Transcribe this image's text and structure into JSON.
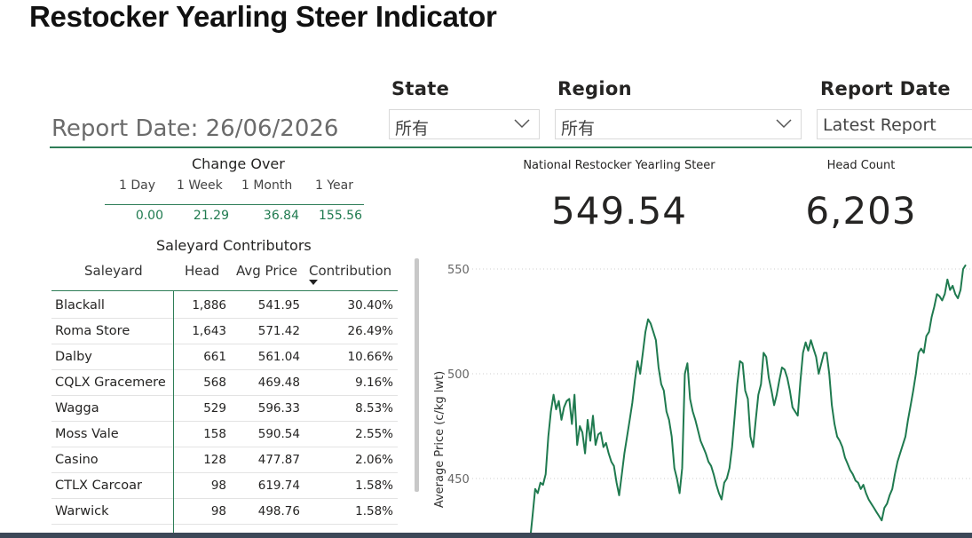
{
  "header": {
    "title": "Restocker Yearling Steer Indicator",
    "report_date_text": "Report Date: 26/06/2026"
  },
  "slicers": {
    "state": {
      "label": "State",
      "value": "所有"
    },
    "region": {
      "label": "Region",
      "value": "所有"
    },
    "report_date": {
      "label": "Report Date",
      "value": "Latest Report"
    }
  },
  "cards": {
    "national": {
      "label": "National Restocker Yearling Steer",
      "value": "549.54"
    },
    "head_count": {
      "label": "Head Count",
      "value": "6,203"
    }
  },
  "change_over": {
    "title": "Change Over",
    "headers": [
      "1 Day",
      "1 Week",
      "1 Month",
      "1 Year"
    ],
    "values": [
      "0.00",
      "21.29",
      "36.84",
      "155.56"
    ]
  },
  "saleyard": {
    "title": "Saleyard Contributors",
    "columns": [
      "Saleyard",
      "Head",
      "Avg Price",
      "Contribution"
    ],
    "rows": [
      {
        "name": "Blackall",
        "head": "1,886",
        "avg": "541.95",
        "contrib": "30.40%"
      },
      {
        "name": "Roma Store",
        "head": "1,643",
        "avg": "571.42",
        "contrib": "26.49%"
      },
      {
        "name": "Dalby",
        "head": "661",
        "avg": "561.04",
        "contrib": "10.66%"
      },
      {
        "name": "CQLX Gracemere",
        "head": "568",
        "avg": "469.48",
        "contrib": "9.16%"
      },
      {
        "name": "Wagga",
        "head": "529",
        "avg": "596.33",
        "contrib": "8.53%"
      },
      {
        "name": "Moss Vale",
        "head": "158",
        "avg": "590.54",
        "contrib": "2.55%"
      },
      {
        "name": "Casino",
        "head": "128",
        "avg": "477.87",
        "contrib": "2.06%"
      },
      {
        "name": "CTLX Carcoar",
        "head": "98",
        "avg": "619.74",
        "contrib": "1.58%"
      },
      {
        "name": "Warwick",
        "head": "98",
        "avg": "498.76",
        "contrib": "1.58%"
      }
    ]
  },
  "colors": {
    "accent": "#2e7d57",
    "line": "#1f7a4f"
  },
  "chart_data": {
    "type": "line",
    "ylabel": "Average Price (c/kg lwt)",
    "y_ticks": [
      550,
      500,
      450
    ],
    "ylim": [
      420,
      552
    ],
    "series": [
      {
        "values": [
          415,
          420,
          432,
          445,
          443,
          448,
          447,
          452,
          470,
          482,
          490,
          483,
          487,
          478,
          484,
          487,
          488,
          476,
          490,
          466,
          475,
          472,
          462,
          478,
          468,
          480,
          466,
          471,
          472,
          465,
          467,
          462,
          458,
          456,
          448,
          442,
          452,
          462,
          470,
          478,
          486,
          497,
          506,
          500,
          510,
          520,
          526,
          524,
          520,
          516,
          503,
          495,
          492,
          482,
          478,
          470,
          455,
          450,
          443,
          455,
          500,
          505,
          488,
          482,
          478,
          473,
          468,
          465,
          462,
          458,
          456,
          452,
          447,
          443,
          440,
          448,
          450,
          455,
          465,
          480,
          495,
          506,
          505,
          492,
          488,
          470,
          465,
          478,
          490,
          495,
          510,
          508,
          498,
          492,
          485,
          490,
          497,
          503,
          502,
          498,
          492,
          484,
          482,
          480,
          496,
          510,
          515,
          511,
          516,
          512,
          508,
          500,
          505,
          510,
          510,
          500,
          485,
          476,
          470,
          468,
          465,
          460,
          457,
          454,
          452,
          449,
          448,
          445,
          447,
          443,
          440,
          438,
          436,
          434,
          432,
          430,
          436,
          438,
          442,
          445,
          452,
          458,
          462,
          466,
          470,
          478,
          485,
          492,
          500,
          510,
          512,
          510,
          518,
          520,
          527,
          532,
          538,
          537,
          535,
          538,
          545,
          540,
          542,
          538,
          536,
          540,
          550,
          552
        ]
      }
    ]
  }
}
